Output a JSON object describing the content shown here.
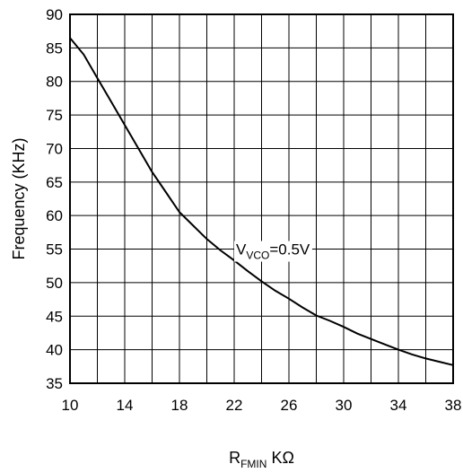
{
  "chart_data": {
    "type": "line",
    "title": "",
    "xlabel": {
      "main": "R",
      "sub": "FMIN",
      "unit": "KΩ"
    },
    "ylabel": "Frequency (KHz)",
    "xlim": [
      10,
      38
    ],
    "ylim": [
      35,
      90
    ],
    "grid": true,
    "legend": "none",
    "x_ticks": [
      "10",
      "14",
      "18",
      "22",
      "26",
      "30",
      "34",
      "38"
    ],
    "y_ticks": [
      "35",
      "40",
      "45",
      "50",
      "55",
      "60",
      "65",
      "70",
      "75",
      "80",
      "85",
      "90"
    ],
    "x_grid_step": 2,
    "y_grid_step": 5,
    "series": [
      {
        "x": [
          10,
          11,
          12,
          13,
          14,
          15,
          16,
          17,
          18,
          19,
          20,
          21,
          22,
          23,
          24,
          25,
          26,
          27,
          28,
          29,
          30,
          31,
          32,
          33,
          34,
          35,
          36,
          37,
          38
        ],
        "y": [
          86.5,
          84.0,
          80.5,
          77.0,
          73.5,
          70.0,
          66.5,
          63.5,
          60.5,
          58.5,
          56.5,
          54.8,
          53.3,
          51.7,
          50.2,
          48.8,
          47.6,
          46.3,
          45.1,
          44.3,
          43.4,
          42.4,
          41.6,
          40.8,
          40.0,
          39.3,
          38.7,
          38.2,
          37.7
        ],
        "color": "#000000"
      }
    ],
    "annotations": [
      {
        "main": "V",
        "sub": "VCO",
        "rest": "=0.5V",
        "x": 22,
        "y": 55
      }
    ]
  }
}
